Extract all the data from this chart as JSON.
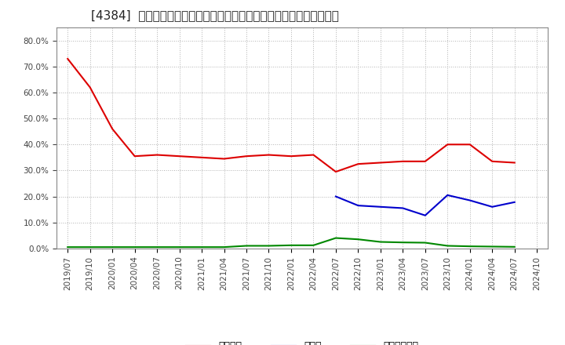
{
  "title": "[4384]  自己資本、のれん、繰延税金資産の総資産に対する比率の推移",
  "ylim": [
    0.0,
    0.85
  ],
  "yticks": [
    0.0,
    0.1,
    0.2,
    0.3,
    0.4,
    0.5,
    0.6,
    0.7,
    0.8
  ],
  "background_color": "#ffffff",
  "plot_bg_color": "#ffffff",
  "grid_color": "#aaaaaa",
  "x_labels": [
    "2019/07",
    "2019/10",
    "2020/01",
    "2020/04",
    "2020/07",
    "2020/10",
    "2021/01",
    "2021/04",
    "2021/07",
    "2021/10",
    "2022/01",
    "2022/04",
    "2022/07",
    "2022/10",
    "2023/01",
    "2023/04",
    "2023/07",
    "2023/10",
    "2024/01",
    "2024/04",
    "2024/07",
    "2024/10"
  ],
  "jikoshihon": [
    0.73,
    0.62,
    0.46,
    0.355,
    0.36,
    0.355,
    0.35,
    0.345,
    0.355,
    0.36,
    0.355,
    0.36,
    0.295,
    0.325,
    0.33,
    0.335,
    0.335,
    0.4,
    0.4,
    0.335,
    0.33,
    null
  ],
  "noren": [
    null,
    null,
    null,
    null,
    null,
    null,
    null,
    null,
    null,
    null,
    null,
    null,
    0.2,
    0.165,
    0.16,
    0.155,
    0.127,
    0.205,
    0.185,
    0.16,
    0.178,
    null
  ],
  "kuenzeichkin": [
    0.005,
    0.005,
    0.005,
    0.005,
    0.005,
    0.005,
    0.005,
    0.005,
    0.01,
    0.01,
    0.012,
    0.012,
    0.04,
    0.035,
    0.025,
    0.023,
    0.022,
    0.01,
    0.008,
    0.007,
    0.006,
    null
  ],
  "line_colors": {
    "jikoshihon": "#dd0000",
    "noren": "#0000cc",
    "kuenzeichkin": "#008800"
  },
  "legend_labels": {
    "jikoshihon": "自己資本",
    "noren": "のれん",
    "kuenzeichkin": "繰延税金資産"
  },
  "title_fontsize": 11,
  "tick_fontsize": 7.5,
  "legend_fontsize": 9
}
